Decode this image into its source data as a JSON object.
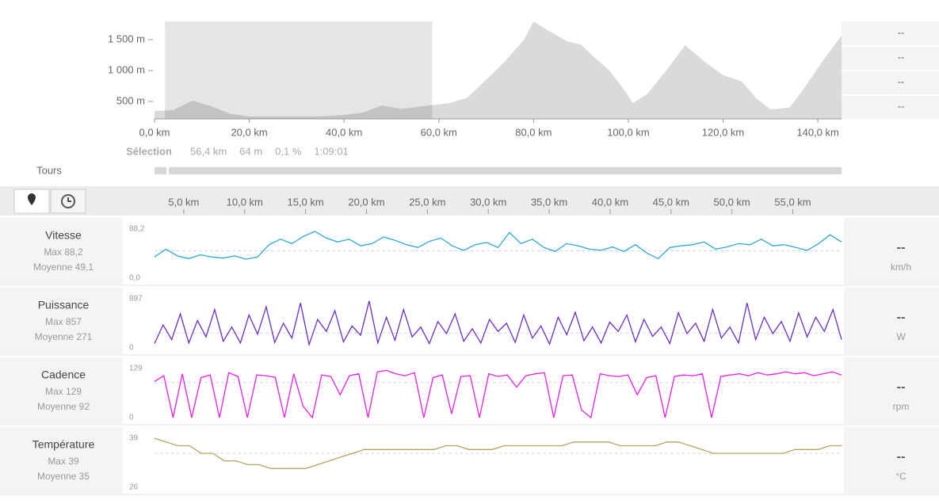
{
  "chart_data": [
    {
      "type": "area",
      "x": [
        0,
        4,
        8,
        12,
        16,
        20,
        25,
        30,
        35,
        40,
        44,
        48,
        52,
        58,
        62,
        66,
        70,
        74,
        78,
        80,
        83,
        87,
        90,
        93,
        96,
        99,
        101,
        104,
        108,
        112,
        116,
        120,
        124,
        127,
        130,
        134,
        137,
        141,
        145
      ],
      "values": [
        346,
        360,
        513,
        420,
        300,
        256,
        256,
        256,
        256,
        280,
        320,
        436,
        380,
        436,
        470,
        560,
        850,
        1150,
        1500,
        1795,
        1650,
        1475,
        1420,
        1200,
        1000,
        700,
        475,
        620,
        1000,
        1410,
        1150,
        925,
        820,
        550,
        370,
        400,
        700,
        1150,
        1565
      ],
      "xlim": [
        0,
        145
      ],
      "ylim": [
        218,
        1795
      ],
      "xticks": [
        {
          "value": 0,
          "label": "0,0 km"
        },
        {
          "value": 20,
          "label": "20,0 km"
        },
        {
          "value": 40,
          "label": "40,0 km"
        },
        {
          "value": 60,
          "label": "60,0 km"
        },
        {
          "value": 80,
          "label": "80,0 km"
        },
        {
          "value": 100,
          "label": "100,0 km"
        },
        {
          "value": 120,
          "label": "120,0 km"
        },
        {
          "value": 140,
          "label": "140,0 km"
        }
      ],
      "yticks": [
        {
          "value": 500,
          "label": "500 m"
        },
        {
          "value": 1000,
          "label": "1 000 m"
        },
        {
          "value": 1500,
          "label": "1 500 m"
        }
      ],
      "color": "#dadada",
      "selection": [
        2.2,
        58.6
      ]
    },
    {
      "type": "line",
      "name": "Vitesse",
      "max_label": "Max 88,2",
      "mean_label": "Moyenne 49,1",
      "mean": 49.1,
      "unit": "km/h",
      "readout": "--",
      "ylim": [
        0,
        88.2
      ],
      "yticks": [
        {
          "value": 0,
          "label": "0,0"
        },
        {
          "value": 88.2,
          "label": "88,2"
        }
      ],
      "color": "#2ea9d6",
      "values": [
        38,
        52,
        40,
        35,
        42,
        38,
        36,
        40,
        34,
        38,
        60,
        70,
        62,
        75,
        84,
        72,
        65,
        70,
        58,
        62,
        74,
        68,
        60,
        55,
        66,
        72,
        58,
        50,
        60,
        64,
        55,
        82,
        62,
        70,
        55,
        48,
        62,
        58,
        52,
        50,
        56,
        48,
        60,
        45,
        35,
        55,
        58,
        60,
        65,
        52,
        56,
        62,
        60,
        70,
        58,
        60,
        55,
        50,
        62,
        78,
        65
      ]
    },
    {
      "type": "line",
      "name": "Puissance",
      "max_label": "Max 857",
      "mean_label": "Moyenne 271",
      "mean": 271,
      "unit": "W",
      "readout": "--",
      "ylim": [
        0,
        897
      ],
      "yticks": [
        0,
        897
      ],
      "color": "#6a2fc4",
      "values": [
        80,
        420,
        150,
        620,
        90,
        500,
        200,
        700,
        120,
        380,
        90,
        600,
        250,
        750,
        100,
        450,
        180,
        820,
        60,
        520,
        300,
        680,
        110,
        400,
        230,
        857,
        90,
        560,
        140,
        700,
        200,
        380,
        80,
        480,
        260,
        620,
        120,
        350,
        90,
        520,
        300,
        450,
        100,
        600,
        180,
        400,
        70,
        560,
        240,
        650,
        130,
        380,
        90,
        470,
        300,
        600,
        110,
        520,
        210,
        380,
        80,
        640,
        260,
        450,
        120,
        700,
        180,
        380,
        90,
        820,
        150,
        560,
        260,
        480,
        120,
        640,
        200,
        560,
        300,
        700,
        150
      ]
    },
    {
      "type": "line",
      "name": "Cadence",
      "max_label": "Max 129",
      "mean_label": "Moyenne 92",
      "mean": 92,
      "unit": "rpm",
      "readout": "--",
      "ylim": [
        0,
        129
      ],
      "yticks": [
        0,
        129
      ],
      "color": "#e81ee8",
      "values": [
        95,
        110,
        0,
        115,
        0,
        105,
        112,
        0,
        118,
        108,
        0,
        112,
        110,
        106,
        0,
        115,
        30,
        0,
        112,
        108,
        60,
        110,
        115,
        0,
        120,
        124,
        115,
        110,
        118,
        0,
        105,
        112,
        10,
        108,
        110,
        0,
        115,
        108,
        112,
        80,
        110,
        115,
        118,
        0,
        110,
        112,
        20,
        0,
        115,
        110,
        108,
        112,
        60,
        105,
        110,
        0,
        108,
        112,
        110,
        115,
        0,
        108,
        112,
        115,
        110,
        118,
        112,
        115,
        120,
        115,
        118,
        110,
        115,
        120,
        112
      ]
    },
    {
      "type": "line",
      "name": "Température",
      "max_label": "Max 39",
      "mean_label": "Moyenne 35",
      "mean": 35,
      "unit": "°C",
      "readout": "--",
      "ylim": [
        26,
        39
      ],
      "yticks": [
        26,
        39
      ],
      "color": "#b5a460",
      "values": [
        39,
        38,
        37,
        37,
        35,
        35,
        33,
        33,
        32,
        32,
        31,
        31,
        31,
        31,
        32,
        33,
        34,
        35,
        36,
        36,
        36,
        36,
        36,
        36,
        36,
        37,
        37,
        36,
        36,
        36,
        37,
        37,
        37,
        37,
        37,
        37,
        38,
        38,
        38,
        38,
        37,
        37,
        37,
        37,
        38,
        38,
        37,
        36,
        35,
        35,
        35,
        35,
        35,
        35,
        35,
        36,
        36,
        36,
        37,
        37
      ]
    }
  ],
  "readouts": [
    "--",
    "--",
    "--",
    "--"
  ],
  "selection": {
    "label": "Sélection",
    "items": [
      "56,4 km",
      "64 m",
      "0,1 %",
      "1:09:01"
    ]
  },
  "tours": "Tours",
  "distance_axis": {
    "xlim": [
      2.6,
      59
    ],
    "xticks": [
      {
        "value": 5,
        "label": "5,0 km"
      },
      {
        "value": 10,
        "label": "10,0 km"
      },
      {
        "value": 15,
        "label": "15,0 km"
      },
      {
        "value": 20,
        "label": "20,0 km"
      },
      {
        "value": 25,
        "label": "25,0 km"
      },
      {
        "value": 30,
        "label": "30,0 km"
      },
      {
        "value": 35,
        "label": "35,0 km"
      },
      {
        "value": 40,
        "label": "40,0 km"
      },
      {
        "value": 45,
        "label": "45,0 km"
      },
      {
        "value": 50,
        "label": "50,0 km"
      },
      {
        "value": 55,
        "label": "55,0 km"
      }
    ]
  }
}
